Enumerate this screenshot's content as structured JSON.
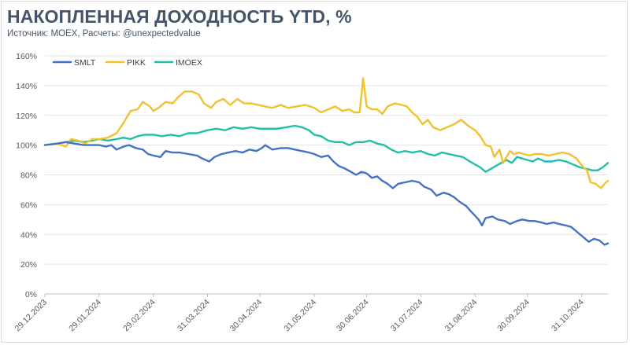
{
  "title": "НАКОПЛЕННАЯ ДОХОДНОСТЬ YTD, %",
  "subtitle": "Источник: MOEX, Расчеты: @unexpectedvalue",
  "chart_data": {
    "type": "line",
    "legend_position": "top-left",
    "grid": "horizontal",
    "ylim": [
      0,
      160
    ],
    "ytick_values": [
      0,
      20,
      40,
      60,
      80,
      100,
      120,
      140,
      160
    ],
    "ytick_labels": [
      "0%",
      "20%",
      "40%",
      "60%",
      "80%",
      "100%",
      "120%",
      "140%",
      "160%"
    ],
    "xlim": [
      "2023-12-29",
      "2024-11-15"
    ],
    "xticks": [
      "2023-12-29",
      "2024-01-29",
      "2024-02-29",
      "2024-03-31",
      "2024-04-30",
      "2024-05-31",
      "2024-06-30",
      "2024-07-31",
      "2024-08-31",
      "2024-09-30",
      "2024-10-31"
    ],
    "xtick_labels": [
      "29.12.2023",
      "29.01.2024",
      "29.02.2024",
      "31.03.2024",
      "30.04.2024",
      "31.05.2024",
      "30.06.2024",
      "31.07.2024",
      "31.08.2024",
      "30.09.2024",
      "31.10.2024"
    ],
    "series": [
      {
        "name": "SMLT",
        "color": "#4472c4",
        "points": [
          [
            "2023-12-29",
            100
          ],
          [
            "2024-01-05",
            101
          ],
          [
            "2024-01-10",
            102
          ],
          [
            "2024-01-15",
            101
          ],
          [
            "2024-01-20",
            100
          ],
          [
            "2024-01-25",
            100
          ],
          [
            "2024-01-29",
            100
          ],
          [
            "2024-02-02",
            99
          ],
          [
            "2024-02-05",
            100
          ],
          [
            "2024-02-08",
            97
          ],
          [
            "2024-02-12",
            99
          ],
          [
            "2024-02-15",
            100
          ],
          [
            "2024-02-19",
            98
          ],
          [
            "2024-02-23",
            97
          ],
          [
            "2024-02-26",
            94
          ],
          [
            "2024-02-29",
            93
          ],
          [
            "2024-03-04",
            92
          ],
          [
            "2024-03-07",
            96
          ],
          [
            "2024-03-11",
            95
          ],
          [
            "2024-03-15",
            95
          ],
          [
            "2024-03-20",
            94
          ],
          [
            "2024-03-25",
            93
          ],
          [
            "2024-03-28",
            91
          ],
          [
            "2024-04-01",
            89
          ],
          [
            "2024-04-04",
            92
          ],
          [
            "2024-04-08",
            94
          ],
          [
            "2024-04-12",
            95
          ],
          [
            "2024-04-16",
            96
          ],
          [
            "2024-04-20",
            95
          ],
          [
            "2024-04-24",
            97
          ],
          [
            "2024-04-28",
            96
          ],
          [
            "2024-05-01",
            98
          ],
          [
            "2024-05-03",
            100
          ],
          [
            "2024-05-07",
            97
          ],
          [
            "2024-05-12",
            98
          ],
          [
            "2024-05-16",
            98
          ],
          [
            "2024-05-20",
            97
          ],
          [
            "2024-05-24",
            96
          ],
          [
            "2024-05-28",
            95
          ],
          [
            "2024-05-31",
            94
          ],
          [
            "2024-06-04",
            92
          ],
          [
            "2024-06-08",
            93
          ],
          [
            "2024-06-11",
            89
          ],
          [
            "2024-06-14",
            86
          ],
          [
            "2024-06-18",
            84
          ],
          [
            "2024-06-21",
            82
          ],
          [
            "2024-06-24",
            80
          ],
          [
            "2024-06-27",
            82
          ],
          [
            "2024-06-30",
            81
          ],
          [
            "2024-07-03",
            78
          ],
          [
            "2024-07-06",
            79
          ],
          [
            "2024-07-09",
            76
          ],
          [
            "2024-07-12",
            74
          ],
          [
            "2024-07-15",
            71
          ],
          [
            "2024-07-18",
            74
          ],
          [
            "2024-07-22",
            75
          ],
          [
            "2024-07-26",
            76
          ],
          [
            "2024-07-30",
            75
          ],
          [
            "2024-08-02",
            72
          ],
          [
            "2024-08-06",
            70
          ],
          [
            "2024-08-09",
            66
          ],
          [
            "2024-08-13",
            68
          ],
          [
            "2024-08-16",
            67
          ],
          [
            "2024-08-19",
            65
          ],
          [
            "2024-08-22",
            62
          ],
          [
            "2024-08-26",
            59
          ],
          [
            "2024-08-29",
            55
          ],
          [
            "2024-09-02",
            50
          ],
          [
            "2024-09-04",
            46
          ],
          [
            "2024-09-06",
            51
          ],
          [
            "2024-09-10",
            52
          ],
          [
            "2024-09-13",
            50
          ],
          [
            "2024-09-17",
            49
          ],
          [
            "2024-09-20",
            47
          ],
          [
            "2024-09-24",
            49
          ],
          [
            "2024-09-27",
            50
          ],
          [
            "2024-10-01",
            49
          ],
          [
            "2024-10-04",
            49
          ],
          [
            "2024-10-08",
            48
          ],
          [
            "2024-10-11",
            47
          ],
          [
            "2024-10-15",
            48
          ],
          [
            "2024-10-18",
            47
          ],
          [
            "2024-10-22",
            46
          ],
          [
            "2024-10-25",
            45
          ],
          [
            "2024-10-28",
            42
          ],
          [
            "2024-10-31",
            39
          ],
          [
            "2024-11-04",
            35
          ],
          [
            "2024-11-07",
            37
          ],
          [
            "2024-11-10",
            36
          ],
          [
            "2024-11-13",
            33
          ],
          [
            "2024-11-15",
            34
          ]
        ]
      },
      {
        "name": "PIKK",
        "color": "#f2c12e",
        "points": [
          [
            "2023-12-29",
            100
          ],
          [
            "2024-01-05",
            101
          ],
          [
            "2024-01-10",
            99
          ],
          [
            "2024-01-13",
            104
          ],
          [
            "2024-01-17",
            103
          ],
          [
            "2024-01-21",
            101
          ],
          [
            "2024-01-25",
            104
          ],
          [
            "2024-01-29",
            104
          ],
          [
            "2024-02-03",
            105
          ],
          [
            "2024-02-08",
            108
          ],
          [
            "2024-02-12",
            115
          ],
          [
            "2024-02-16",
            123
          ],
          [
            "2024-02-20",
            124
          ],
          [
            "2024-02-23",
            129
          ],
          [
            "2024-02-27",
            126
          ],
          [
            "2024-02-29",
            123
          ],
          [
            "2024-03-03",
            125
          ],
          [
            "2024-03-07",
            129
          ],
          [
            "2024-03-11",
            128
          ],
          [
            "2024-03-14",
            132
          ],
          [
            "2024-03-18",
            136
          ],
          [
            "2024-03-22",
            136
          ],
          [
            "2024-03-26",
            134
          ],
          [
            "2024-03-29",
            128
          ],
          [
            "2024-04-02",
            125
          ],
          [
            "2024-04-05",
            129
          ],
          [
            "2024-04-09",
            131
          ],
          [
            "2024-04-13",
            127
          ],
          [
            "2024-04-17",
            131
          ],
          [
            "2024-04-21",
            128
          ],
          [
            "2024-04-25",
            128
          ],
          [
            "2024-04-29",
            127
          ],
          [
            "2024-05-03",
            126
          ],
          [
            "2024-05-07",
            125
          ],
          [
            "2024-05-12",
            127
          ],
          [
            "2024-05-16",
            125
          ],
          [
            "2024-05-21",
            126
          ],
          [
            "2024-05-26",
            127
          ],
          [
            "2024-05-31",
            125
          ],
          [
            "2024-06-04",
            122
          ],
          [
            "2024-06-08",
            124
          ],
          [
            "2024-06-12",
            126
          ],
          [
            "2024-06-16",
            123
          ],
          [
            "2024-06-20",
            124
          ],
          [
            "2024-06-23",
            122
          ],
          [
            "2024-06-26",
            122
          ],
          [
            "2024-06-28",
            145
          ],
          [
            "2024-06-30",
            126
          ],
          [
            "2024-07-03",
            124
          ],
          [
            "2024-07-06",
            124
          ],
          [
            "2024-07-09",
            121
          ],
          [
            "2024-07-12",
            126
          ],
          [
            "2024-07-16",
            128
          ],
          [
            "2024-07-20",
            127
          ],
          [
            "2024-07-23",
            126
          ],
          [
            "2024-07-26",
            122
          ],
          [
            "2024-07-29",
            119
          ],
          [
            "2024-08-01",
            114
          ],
          [
            "2024-08-04",
            117
          ],
          [
            "2024-08-07",
            112
          ],
          [
            "2024-08-11",
            110
          ],
          [
            "2024-08-15",
            112
          ],
          [
            "2024-08-19",
            114
          ],
          [
            "2024-08-23",
            117
          ],
          [
            "2024-08-27",
            113
          ],
          [
            "2024-08-31",
            110
          ],
          [
            "2024-09-03",
            106
          ],
          [
            "2024-09-06",
            100
          ],
          [
            "2024-09-09",
            99
          ],
          [
            "2024-09-11",
            92
          ],
          [
            "2024-09-14",
            97
          ],
          [
            "2024-09-16",
            88
          ],
          [
            "2024-09-18",
            92
          ],
          [
            "2024-09-20",
            96
          ],
          [
            "2024-09-22",
            94
          ],
          [
            "2024-09-25",
            95
          ],
          [
            "2024-09-28",
            94
          ],
          [
            "2024-10-01",
            93
          ],
          [
            "2024-10-04",
            94
          ],
          [
            "2024-10-08",
            94
          ],
          [
            "2024-10-12",
            93
          ],
          [
            "2024-10-16",
            94
          ],
          [
            "2024-10-20",
            95
          ],
          [
            "2024-10-24",
            94
          ],
          [
            "2024-10-28",
            91
          ],
          [
            "2024-11-01",
            85
          ],
          [
            "2024-11-03",
            83
          ],
          [
            "2024-11-05",
            75
          ],
          [
            "2024-11-08",
            74
          ],
          [
            "2024-11-11",
            71
          ],
          [
            "2024-11-13",
            74
          ],
          [
            "2024-11-15",
            76
          ]
        ]
      },
      {
        "name": "IMOEX",
        "color": "#1fbfa8",
        "points": [
          [
            "2023-12-29",
            100
          ],
          [
            "2024-01-05",
            101
          ],
          [
            "2024-01-10",
            102
          ],
          [
            "2024-01-15",
            103
          ],
          [
            "2024-01-20",
            102
          ],
          [
            "2024-01-25",
            103
          ],
          [
            "2024-01-29",
            104
          ],
          [
            "2024-02-03",
            103
          ],
          [
            "2024-02-08",
            104
          ],
          [
            "2024-02-12",
            105
          ],
          [
            "2024-02-16",
            104
          ],
          [
            "2024-02-20",
            106
          ],
          [
            "2024-02-24",
            107
          ],
          [
            "2024-02-29",
            107
          ],
          [
            "2024-03-05",
            106
          ],
          [
            "2024-03-10",
            107
          ],
          [
            "2024-03-15",
            106
          ],
          [
            "2024-03-20",
            108
          ],
          [
            "2024-03-25",
            108
          ],
          [
            "2024-03-31",
            110
          ],
          [
            "2024-04-05",
            111
          ],
          [
            "2024-04-10",
            110
          ],
          [
            "2024-04-15",
            112
          ],
          [
            "2024-04-20",
            111
          ],
          [
            "2024-04-25",
            112
          ],
          [
            "2024-04-30",
            111
          ],
          [
            "2024-05-05",
            111
          ],
          [
            "2024-05-10",
            111
          ],
          [
            "2024-05-15",
            112
          ],
          [
            "2024-05-20",
            113
          ],
          [
            "2024-05-24",
            112
          ],
          [
            "2024-05-28",
            110
          ],
          [
            "2024-05-31",
            107
          ],
          [
            "2024-06-04",
            106
          ],
          [
            "2024-06-08",
            103
          ],
          [
            "2024-06-12",
            102
          ],
          [
            "2024-06-16",
            102
          ],
          [
            "2024-06-20",
            100
          ],
          [
            "2024-06-24",
            102
          ],
          [
            "2024-06-28",
            102
          ],
          [
            "2024-07-02",
            103
          ],
          [
            "2024-07-06",
            101
          ],
          [
            "2024-07-10",
            100
          ],
          [
            "2024-07-14",
            97
          ],
          [
            "2024-07-18",
            95
          ],
          [
            "2024-07-22",
            96
          ],
          [
            "2024-07-26",
            95
          ],
          [
            "2024-07-31",
            96
          ],
          [
            "2024-08-04",
            94
          ],
          [
            "2024-08-08",
            93
          ],
          [
            "2024-08-12",
            95
          ],
          [
            "2024-08-16",
            94
          ],
          [
            "2024-08-20",
            93
          ],
          [
            "2024-08-24",
            92
          ],
          [
            "2024-08-28",
            89
          ],
          [
            "2024-08-31",
            87
          ],
          [
            "2024-09-03",
            85
          ],
          [
            "2024-09-06",
            82
          ],
          [
            "2024-09-09",
            84
          ],
          [
            "2024-09-12",
            86
          ],
          [
            "2024-09-15",
            88
          ],
          [
            "2024-09-18",
            90
          ],
          [
            "2024-09-21",
            88
          ],
          [
            "2024-09-24",
            92
          ],
          [
            "2024-09-27",
            91
          ],
          [
            "2024-09-30",
            90
          ],
          [
            "2024-10-03",
            89
          ],
          [
            "2024-10-06",
            91
          ],
          [
            "2024-10-10",
            89
          ],
          [
            "2024-10-14",
            89
          ],
          [
            "2024-10-18",
            90
          ],
          [
            "2024-10-22",
            89
          ],
          [
            "2024-10-26",
            87
          ],
          [
            "2024-10-30",
            85
          ],
          [
            "2024-11-03",
            84
          ],
          [
            "2024-11-06",
            83
          ],
          [
            "2024-11-09",
            83
          ],
          [
            "2024-11-12",
            85
          ],
          [
            "2024-11-15",
            88
          ]
        ]
      }
    ]
  }
}
